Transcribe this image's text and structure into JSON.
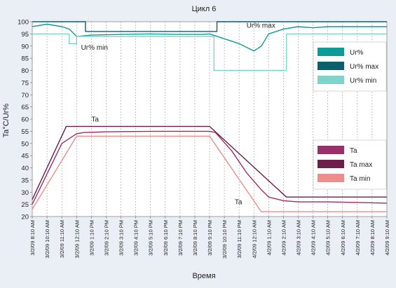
{
  "chart_data": {
    "type": "line",
    "title": "Цикл 6",
    "xlabel": "Время",
    "ylabel": "Ta°C/Ur%",
    "ylim": [
      20,
      100
    ],
    "yticks": [
      20,
      25,
      30,
      35,
      40,
      45,
      50,
      55,
      60,
      65,
      70,
      75,
      80,
      85,
      90,
      95,
      100
    ],
    "x_ticks": [
      "3/2/09 8:10 AM",
      "3/2/09 10:10 AM",
      "3/2/09 11:10 AM",
      "3/2/09 12:10 AM",
      "3/2/09 1:10 PM",
      "3/2/09 2:10 PM",
      "3/2/09 3:10 PM",
      "3/2/09 4:10 PM",
      "3/2/09 5:10 PM",
      "3/2/09 6:10 PM",
      "3/2/09 7:10 PM",
      "3/2/09 8:10 PM",
      "3/2/09 9:10 PM",
      "3/2/09 10:10 PM",
      "3/2/09 11:10 PM",
      "4/2/09 12:10 AM",
      "4/2/09 1:10 AM",
      "4/2/09 2:10 AM",
      "4/2/09 3:10 AM",
      "4/2/09 4:10 AM",
      "4/2/09 5:10 AM",
      "4/2/09 6:10 AM",
      "4/2/09 7:10 AM",
      "4/2/09 8:10 AM",
      "4/2/09 9:10 AM"
    ],
    "grid": "dashed vertical",
    "series": [
      {
        "name": "Ur%",
        "color": "#0e9c96",
        "points": [
          [
            0,
            98
          ],
          [
            1,
            99
          ],
          [
            2,
            98
          ],
          [
            2.5,
            97
          ],
          [
            3,
            94
          ],
          [
            4,
            94.5
          ],
          [
            6,
            94.8
          ],
          [
            8,
            95
          ],
          [
            10,
            94.8
          ],
          [
            11.5,
            94.8
          ],
          [
            12,
            95
          ],
          [
            13,
            93
          ],
          [
            14,
            91
          ],
          [
            15,
            88
          ],
          [
            15.5,
            90
          ],
          [
            16,
            95
          ],
          [
            17,
            97
          ],
          [
            18,
            98
          ],
          [
            19,
            97.5
          ],
          [
            20,
            98
          ],
          [
            21,
            98
          ],
          [
            22,
            98
          ],
          [
            23,
            98
          ],
          [
            24,
            98
          ]
        ]
      },
      {
        "name": "Ur% max",
        "color": "#0d5f6b",
        "points": [
          [
            0,
            100
          ],
          [
            3.6,
            100
          ],
          [
            3.6,
            96
          ],
          [
            12.5,
            96
          ],
          [
            12.5,
            100
          ],
          [
            24,
            100
          ]
        ]
      },
      {
        "name": "Ur% min",
        "color": "#7fd3c9",
        "points": [
          [
            0,
            95
          ],
          [
            2.5,
            95
          ],
          [
            2.5,
            91
          ],
          [
            3,
            91
          ],
          [
            3,
            94
          ],
          [
            12.3,
            94
          ],
          [
            12.3,
            80
          ],
          [
            17.2,
            80
          ],
          [
            17.2,
            95
          ],
          [
            24,
            95
          ]
        ]
      },
      {
        "name": "Ta",
        "color": "#9b2f69",
        "points": [
          [
            0,
            25
          ],
          [
            2,
            50
          ],
          [
            3,
            54
          ],
          [
            3.5,
            54.5
          ],
          [
            5,
            54.8
          ],
          [
            8,
            55
          ],
          [
            12,
            55
          ],
          [
            12.4,
            54.5
          ],
          [
            13.5,
            47
          ],
          [
            14.5,
            38
          ],
          [
            15.5,
            31
          ],
          [
            16,
            28
          ],
          [
            17,
            26.5
          ],
          [
            18,
            26
          ],
          [
            20,
            26
          ],
          [
            24,
            25.5
          ]
        ]
      },
      {
        "name": "Ta max",
        "color": "#6d1e4a",
        "points": [
          [
            0,
            27
          ],
          [
            2.3,
            57
          ],
          [
            12,
            57
          ],
          [
            17.2,
            28
          ],
          [
            24,
            28
          ]
        ]
      },
      {
        "name": "Ta min",
        "color": "#ec8e8a",
        "points": [
          [
            0,
            23
          ],
          [
            3,
            53
          ],
          [
            12,
            53
          ],
          [
            15.5,
            22
          ],
          [
            24,
            22
          ]
        ]
      }
    ],
    "annotations": [
      {
        "text": "Ur% max",
        "x": 14.5,
        "y": 97.5
      },
      {
        "text": "Ur% min",
        "x": 3.3,
        "y": 88.5
      },
      {
        "text": "Ta",
        "x": 4,
        "y": 59
      },
      {
        "text": "Ta",
        "x": 13.7,
        "y": 25
      }
    ],
    "legends": [
      {
        "placement": "right-upper",
        "entries": [
          "Ur%",
          "Ur% max",
          "Ur% min"
        ]
      },
      {
        "placement": "right-lower",
        "entries": [
          "Ta",
          "Ta max",
          "Ta min"
        ]
      }
    ]
  }
}
